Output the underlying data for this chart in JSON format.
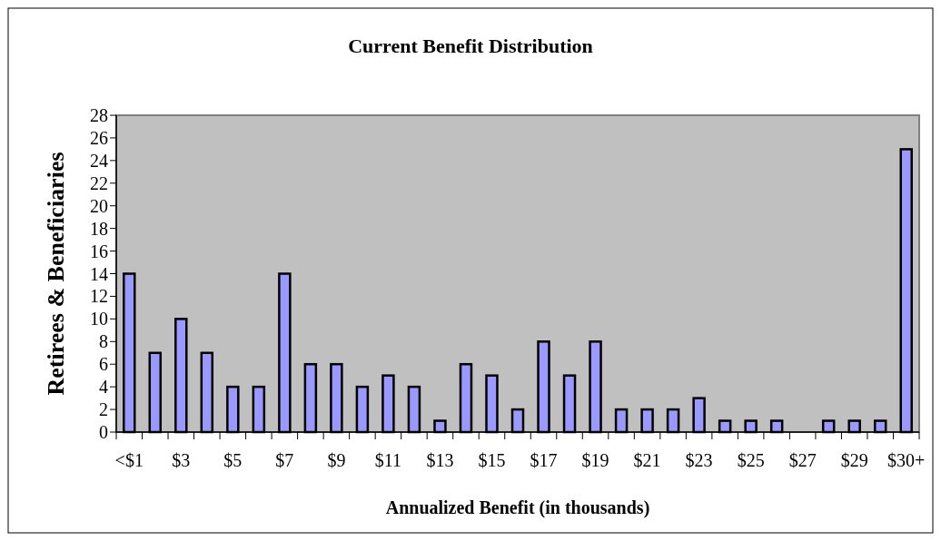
{
  "chart_data": {
    "type": "bar",
    "title": "Current Benefit Distribution",
    "xlabel": "Annualized Benefit (in thousands)",
    "ylabel": "Retirees & Beneficiaries",
    "categories": [
      "<$1",
      null,
      "$3",
      null,
      "$5",
      null,
      "$7",
      null,
      "$9",
      null,
      "$11",
      null,
      "$13",
      null,
      "$15",
      null,
      "$17",
      null,
      "$19",
      null,
      "$21",
      null,
      "$23",
      null,
      "$25",
      null,
      "$27",
      null,
      "$29",
      null,
      "$30+"
    ],
    "values": [
      14,
      7,
      10,
      7,
      4,
      4,
      14,
      6,
      6,
      4,
      5,
      4,
      1,
      6,
      5,
      2,
      8,
      5,
      8,
      2,
      2,
      2,
      3,
      1,
      1,
      1,
      0,
      1,
      1,
      1,
      25
    ],
    "color": "#9999ff",
    "ylim": [
      0,
      28
    ],
    "yticks": [
      0,
      2,
      4,
      6,
      8,
      10,
      12,
      14,
      16,
      18,
      20,
      22,
      24,
      26,
      28
    ],
    "grid": false
  }
}
